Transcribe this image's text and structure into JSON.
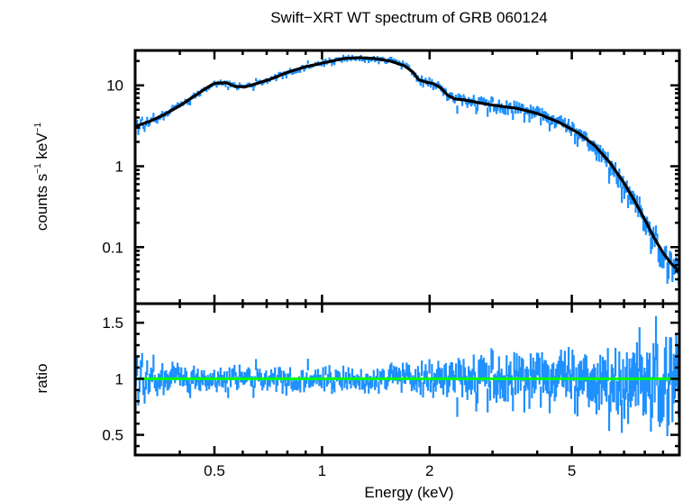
{
  "chart_data": {
    "type": "scatter",
    "title": "Swift−XRT WT spectrum of GRB 060124",
    "xlabel": "Energy (keV)",
    "xscale": "log",
    "xlim": [
      0.3,
      10
    ],
    "xticks": [
      {
        "value": 0.5,
        "label": "0.5"
      },
      {
        "value": 1,
        "label": "1"
      },
      {
        "value": 2,
        "label": "2"
      },
      {
        "value": 5,
        "label": "5"
      }
    ],
    "panels": [
      {
        "name": "spectrum",
        "ylabel": "counts s⁻¹ keV⁻¹",
        "ylabel_parts": {
          "base1": "counts s",
          "sup1": "−1",
          "base2": " keV",
          "sup2": "−1"
        },
        "yscale": "log",
        "ylim": [
          0.02,
          27
        ],
        "yticks": [
          {
            "value": 0.1,
            "label": "0.1"
          },
          {
            "value": 1,
            "label": "1"
          },
          {
            "value": 10,
            "label": "10"
          }
        ],
        "series": [
          {
            "name": "model",
            "style": "line",
            "color": "#000000",
            "x": [
              0.3,
              0.33,
              0.36,
              0.4,
              0.44,
              0.47,
              0.5,
              0.54,
              0.57,
              0.61,
              0.66,
              0.72,
              0.8,
              0.9,
              1.0,
              1.15,
              1.27,
              1.4,
              1.55,
              1.7,
              1.8,
              1.86,
              1.95,
              2.05,
              2.15,
              2.25,
              2.35,
              2.5,
              2.75,
              3.0,
              3.5,
              4.0,
              4.6,
              5.2,
              5.8,
              6.4,
              7.0,
              7.5,
              8.0,
              8.5,
              9.0,
              9.5,
              10.0
            ],
            "y": [
              3.1,
              3.6,
              4.3,
              5.6,
              7.4,
              9.0,
              10.6,
              10.8,
              9.7,
              9.6,
              10.6,
              12.0,
              14.5,
              17.0,
              18.8,
              21.5,
              22.0,
              21.5,
              20.0,
              17.5,
              14.5,
              11.8,
              11.0,
              10.5,
              9.3,
              7.5,
              6.8,
              6.6,
              6.1,
              5.7,
              5.2,
              4.5,
              3.5,
              2.6,
              1.8,
              1.1,
              0.62,
              0.37,
              0.22,
              0.13,
              0.085,
              0.062,
              0.05
            ]
          },
          {
            "name": "data",
            "style": "errorbars",
            "color": "#1e90ff",
            "n_bins": 430,
            "noise_seed": 60124,
            "note": "binned counts scatter around model; fractional scatter grows with energy"
          }
        ]
      },
      {
        "name": "ratio",
        "ylabel": "ratio",
        "yscale": "linear",
        "ylim": [
          0.32,
          1.67
        ],
        "yticks": [
          {
            "value": 0.5,
            "label": "0.5"
          },
          {
            "value": 1,
            "label": "1"
          },
          {
            "value": 1.5,
            "label": "1.5"
          }
        ],
        "series": [
          {
            "name": "unity",
            "style": "hline",
            "value": 1,
            "color": "#00ff00"
          },
          {
            "name": "data/model",
            "style": "errorbars",
            "color": "#1e90ff",
            "scatter_sigma": [
              {
                "energy": 0.3,
                "sigma": 0.12
              },
              {
                "energy": 0.5,
                "sigma": 0.08
              },
              {
                "energy": 1.5,
                "sigma": 0.08
              },
              {
                "energy": 2.0,
                "sigma": 0.12
              },
              {
                "energy": 3.0,
                "sigma": 0.17
              },
              {
                "energy": 5.0,
                "sigma": 0.2
              },
              {
                "energy": 7.0,
                "sigma": 0.26
              },
              {
                "energy": 10.0,
                "sigma": 0.35
              }
            ]
          }
        ]
      }
    ]
  }
}
